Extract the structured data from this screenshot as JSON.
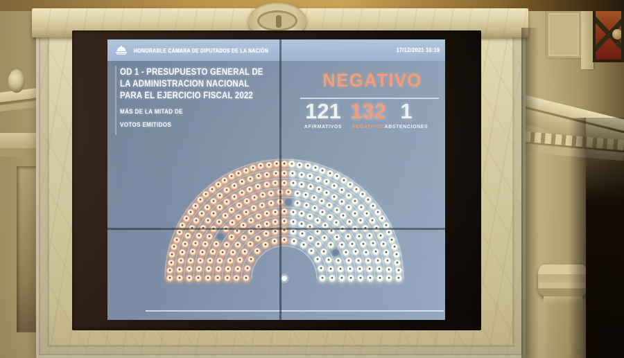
{
  "screen": {
    "header": {
      "logo_icon": "congress-dome-icon",
      "title": "HONORABLE CÁMARA DE DIPUTADOS DE LA NACIÓN",
      "datetime": "17/12/2021 10:19"
    },
    "motion": {
      "line1": "OD 1 - PRESUPUESTO GENERAL DE",
      "line2": "LA ADMINISTRACION NACIONAL",
      "line3": "PARA EL EJERCICIO FISCAL 2022",
      "quorum_rule_line1": "MÁS DE LA MITAD DE",
      "quorum_rule_line2": "VOTOS EMITIDOS"
    },
    "result": {
      "outcome": "NEGATIVO",
      "columns": [
        {
          "count": "121",
          "label": "AFIRMATIVOS",
          "color": "#edf3ee"
        },
        {
          "count": "132",
          "label": "NEGATIVOS",
          "color": "#f49a74"
        },
        {
          "count": "1",
          "label": "ABSTENCIONES",
          "color": "#eef2f8"
        }
      ]
    }
  },
  "chart_data": {
    "type": "hemicycle",
    "title": "OD 1 - PRESUPUESTO GENERAL DE LA ADMINISTRACION NACIONAL PARA EL EJERCICIO FISCAL 2022",
    "outcome": "NEGATIVO",
    "categories": [
      "AFIRMATIVOS",
      "NEGATIVOS",
      "ABSTENCIONES"
    ],
    "values": [
      121,
      132,
      1
    ],
    "total_seats": 257,
    "unlit_seats": 3,
    "rows": [
      13,
      17,
      21,
      25,
      28,
      32,
      35,
      39,
      47
    ],
    "layout": "semicircle; negative (orange) seats on viewer left, affirmative (pale green-white) seats on viewer right, abstention near top centre",
    "seat_colors": {
      "affirmative": "#ecf3e9",
      "negative": "#f8c09a",
      "abstention": "#f6eec9",
      "unlit": "#5b6e8e"
    }
  },
  "colors": {
    "outcome_negative": "#f59a74",
    "screen_background": "#8093ad",
    "header_bar": "#a7bcd7",
    "marble_frame": "#d9cea6",
    "bezel": "#1c1309"
  }
}
